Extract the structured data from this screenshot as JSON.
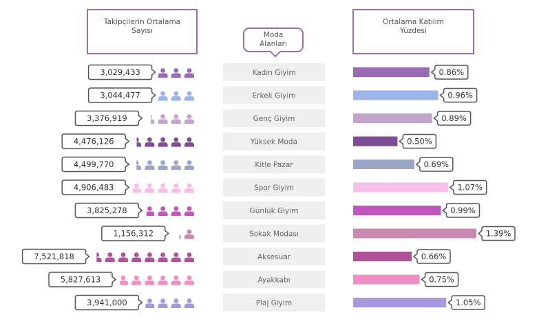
{
  "headers": {
    "left": "Takipçilerin Ortalama\nSayısı",
    "middle": "Moda\nAlanları",
    "right": "Ortalama Katılım\nYüzdesi"
  },
  "chart_data": {
    "type": "bar",
    "categories": [
      "Kadın Giyim",
      "Erkek Giyim",
      "Genç Giyim",
      "Yüksek Moda",
      "Kitle Pazar",
      "Spor Giyim",
      "Günlük Giyim",
      "Sokak Modası",
      "Aksesuar",
      "Ayakkabı",
      "Plaj Giyim"
    ],
    "series": [
      {
        "values": [
          3029433,
          3044477,
          3376919,
          4476126,
          4499770,
          4906483,
          3825278,
          1156312,
          7521818,
          5827613,
          3941000
        ],
        "labels": [
          "3,029,433",
          "3,044,477",
          "3,376,919",
          "4,476,126",
          "4,499,770",
          "4,906,483",
          "3,825,278",
          "1,156,312",
          "7,521,818",
          "5,827,613",
          "3,941,000"
        ]
      },
      {
        "values": [
          0.86,
          0.96,
          0.89,
          0.5,
          0.69,
          1.07,
          0.99,
          1.39,
          0.66,
          0.75,
          1.05
        ],
        "labels": [
          "0.86%",
          "0.96%",
          "0.89%",
          "0.50%",
          "0.69%",
          "1.07%",
          "0.99%",
          "1.39%",
          "0.66%",
          "0.75%",
          "1.05%"
        ]
      }
    ],
    "colors": [
      "#9a6bb5",
      "#9cb4e8",
      "#c4a3cc",
      "#7d4e95",
      "#99a6c6",
      "#f5bfea",
      "#c057bb",
      "#c989b4",
      "#b0529a",
      "#ee8fc6",
      "#a598dd"
    ],
    "icon": "person-icon",
    "legend": "none"
  }
}
